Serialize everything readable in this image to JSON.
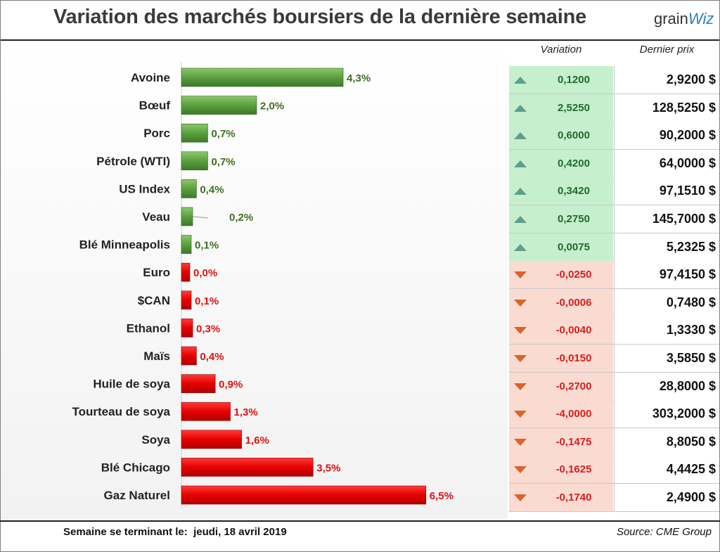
{
  "title": "Variation des marchés boursiers de la dernière semaine",
  "logo": {
    "part1": "grain",
    "part2": "Wiz"
  },
  "colors": {
    "up_bar": "#5aa040",
    "down_bar": "#e60000",
    "up_text": "#3f6f1f",
    "down_text": "#e01010",
    "up_fill": "#c6efce",
    "down_fill": "#fadbd2"
  },
  "table_headers": {
    "variation": "Variation",
    "price": "Dernier prix"
  },
  "footer": {
    "week_label": "Semaine se terminant le:",
    "date": "jeudi, 18 avril 2019",
    "source": "Source: CME Group"
  },
  "chart_data": {
    "type": "bar",
    "orientation": "horizontal",
    "categories": [
      "Avoine",
      "Bœuf",
      "Porc",
      "Pétrole (WTI)",
      "US Index",
      "Veau",
      "Blé Minneapolis",
      "Euro",
      "$CAN",
      "Ethanol",
      "Maïs",
      "Huile de soya",
      "Tourteau de soya",
      "Soya",
      "Blé Chicago",
      "Gaz Naturel"
    ],
    "values": [
      4.3,
      2.0,
      0.7,
      0.7,
      0.4,
      0.2,
      0.1,
      0.0,
      0.1,
      0.3,
      0.4,
      0.9,
      1.3,
      1.6,
      3.5,
      6.5
    ],
    "value_labels": [
      "4,3%",
      "2,0%",
      "0,7%",
      "0,7%",
      "0,4%",
      "0,2%",
      "0,1%",
      "0,0%",
      "0,1%",
      "0,3%",
      "0,4%",
      "0,9%",
      "1,3%",
      "1,6%",
      "3,5%",
      "6,5%"
    ],
    "direction": [
      "up",
      "up",
      "up",
      "up",
      "up",
      "up",
      "up",
      "down",
      "down",
      "down",
      "down",
      "down",
      "down",
      "down",
      "down",
      "down"
    ]
  },
  "table": {
    "rows": [
      {
        "dir": "up",
        "variation": "0,1200",
        "price": "2,9200 $"
      },
      {
        "dir": "up",
        "variation": "2,5250",
        "price": "128,5250 $"
      },
      {
        "dir": "up",
        "variation": "0,6000",
        "price": "90,2000 $"
      },
      {
        "dir": "up",
        "variation": "0,4200",
        "price": "64,0000 $"
      },
      {
        "dir": "up",
        "variation": "0,3420",
        "price": "97,1510 $"
      },
      {
        "dir": "up",
        "variation": "0,2750",
        "price": "145,7000 $"
      },
      {
        "dir": "up",
        "variation": "0,0075",
        "price": "5,2325 $"
      },
      {
        "dir": "down",
        "variation": "-0,0250",
        "price": "97,4150 $"
      },
      {
        "dir": "down",
        "variation": "-0,0006",
        "price": "0,7480 $"
      },
      {
        "dir": "down",
        "variation": "-0,0040",
        "price": "1,3330 $"
      },
      {
        "dir": "down",
        "variation": "-0,0150",
        "price": "3,5850 $"
      },
      {
        "dir": "down",
        "variation": "-0,2700",
        "price": "28,8000 $"
      },
      {
        "dir": "down",
        "variation": "-4,0000",
        "price": "303,2000 $"
      },
      {
        "dir": "down",
        "variation": "-0,1475",
        "price": "8,8050 $"
      },
      {
        "dir": "down",
        "variation": "-0,1625",
        "price": "4,4425 $"
      },
      {
        "dir": "down",
        "variation": "-0,1740",
        "price": "2,4900 $"
      }
    ]
  }
}
